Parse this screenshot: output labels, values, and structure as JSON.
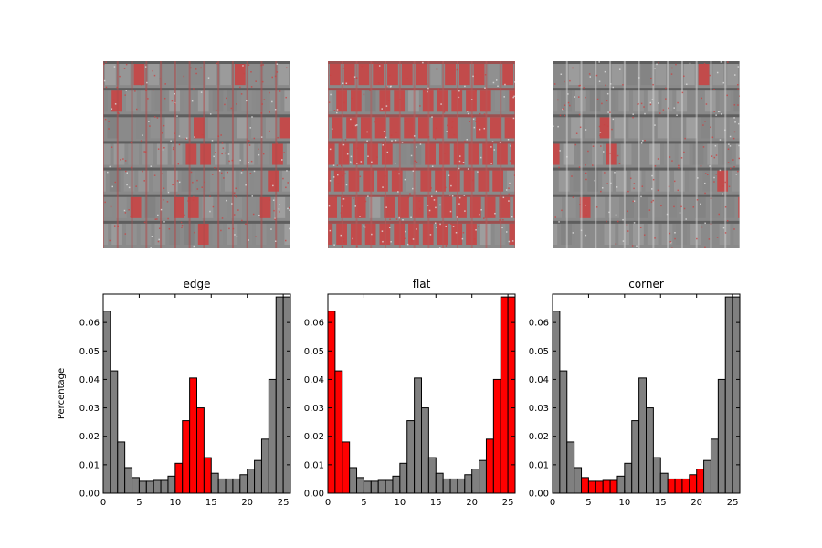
{
  "figure": {
    "ylabel": "Percentage",
    "image_panels": [
      {
        "name": "edge-texture-image",
        "highlight_share": 0.18
      },
      {
        "name": "flat-texture-image",
        "highlight_share": 0.85
      },
      {
        "name": "corner-texture-image",
        "highlight_share": 0.06
      }
    ]
  },
  "colors": {
    "bar_default": "#808080",
    "bar_highlight": "#ff0000",
    "image_base": "#8a8a8a",
    "image_highlight": "#c84444"
  },
  "chart_data": [
    {
      "type": "bar",
      "title": "edge",
      "xlabel": "",
      "ylabel": "Percentage",
      "xlim": [
        0,
        26
      ],
      "ylim": [
        0,
        0.07
      ],
      "xticks": [
        "0",
        "5",
        "10",
        "15",
        "20",
        "25"
      ],
      "yticks": [
        "0.00",
        "0.01",
        "0.02",
        "0.03",
        "0.04",
        "0.05",
        "0.06"
      ],
      "bin_starts": [
        0,
        1,
        2,
        3,
        4,
        5,
        6,
        7,
        8,
        9,
        10,
        11,
        12,
        13,
        14,
        15,
        16,
        17,
        18,
        19,
        20,
        21,
        22,
        23,
        24,
        25
      ],
      "values": [
        0.064,
        0.043,
        0.018,
        0.009,
        0.0055,
        0.0042,
        0.0042,
        0.0045,
        0.0045,
        0.006,
        0.0105,
        0.0255,
        0.0405,
        0.03,
        0.0125,
        0.007,
        0.005,
        0.005,
        0.005,
        0.0065,
        0.0085,
        0.0115,
        0.019,
        0.04,
        0.069,
        0.069
      ],
      "highlighted_bins": [
        10,
        11,
        12,
        13,
        14
      ]
    },
    {
      "type": "bar",
      "title": "flat",
      "xlabel": "",
      "ylabel": "",
      "xlim": [
        0,
        26
      ],
      "ylim": [
        0,
        0.07
      ],
      "xticks": [
        "0",
        "5",
        "10",
        "15",
        "20",
        "25"
      ],
      "yticks": [
        "0.00",
        "0.01",
        "0.02",
        "0.03",
        "0.04",
        "0.05",
        "0.06"
      ],
      "bin_starts": [
        0,
        1,
        2,
        3,
        4,
        5,
        6,
        7,
        8,
        9,
        10,
        11,
        12,
        13,
        14,
        15,
        16,
        17,
        18,
        19,
        20,
        21,
        22,
        23,
        24,
        25
      ],
      "values": [
        0.064,
        0.043,
        0.018,
        0.009,
        0.0055,
        0.0042,
        0.0042,
        0.0045,
        0.0045,
        0.006,
        0.0105,
        0.0255,
        0.0405,
        0.03,
        0.0125,
        0.007,
        0.005,
        0.005,
        0.005,
        0.0065,
        0.0085,
        0.0115,
        0.019,
        0.04,
        0.069,
        0.069
      ],
      "highlighted_bins": [
        0,
        1,
        2,
        22,
        23,
        24,
        25
      ]
    },
    {
      "type": "bar",
      "title": "corner",
      "xlabel": "",
      "ylabel": "",
      "xlim": [
        0,
        26
      ],
      "ylim": [
        0,
        0.07
      ],
      "xticks": [
        "0",
        "5",
        "10",
        "15",
        "20",
        "25"
      ],
      "yticks": [
        "0.00",
        "0.01",
        "0.02",
        "0.03",
        "0.04",
        "0.05",
        "0.06"
      ],
      "bin_starts": [
        0,
        1,
        2,
        3,
        4,
        5,
        6,
        7,
        8,
        9,
        10,
        11,
        12,
        13,
        14,
        15,
        16,
        17,
        18,
        19,
        20,
        21,
        22,
        23,
        24,
        25
      ],
      "values": [
        0.064,
        0.043,
        0.018,
        0.009,
        0.0055,
        0.0042,
        0.0042,
        0.0045,
        0.0045,
        0.006,
        0.0105,
        0.0255,
        0.0405,
        0.03,
        0.0125,
        0.007,
        0.005,
        0.005,
        0.005,
        0.0065,
        0.0085,
        0.0115,
        0.019,
        0.04,
        0.069,
        0.069
      ],
      "highlighted_bins": [
        4,
        5,
        6,
        7,
        8,
        16,
        17,
        18,
        19,
        20
      ]
    }
  ]
}
